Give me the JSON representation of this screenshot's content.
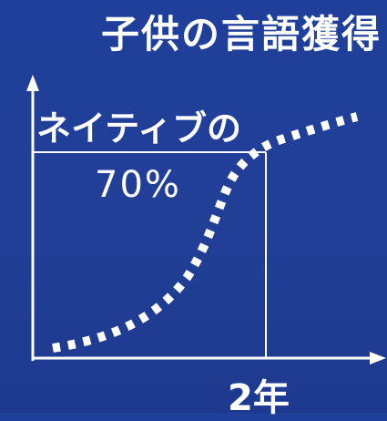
{
  "title": "子供の言語獲得",
  "label_native": "ネイティブの",
  "label_percent": "70%",
  "label_years": "2年",
  "colors": {
    "background": "#223f97",
    "foreground": "#ffffff"
  }
}
